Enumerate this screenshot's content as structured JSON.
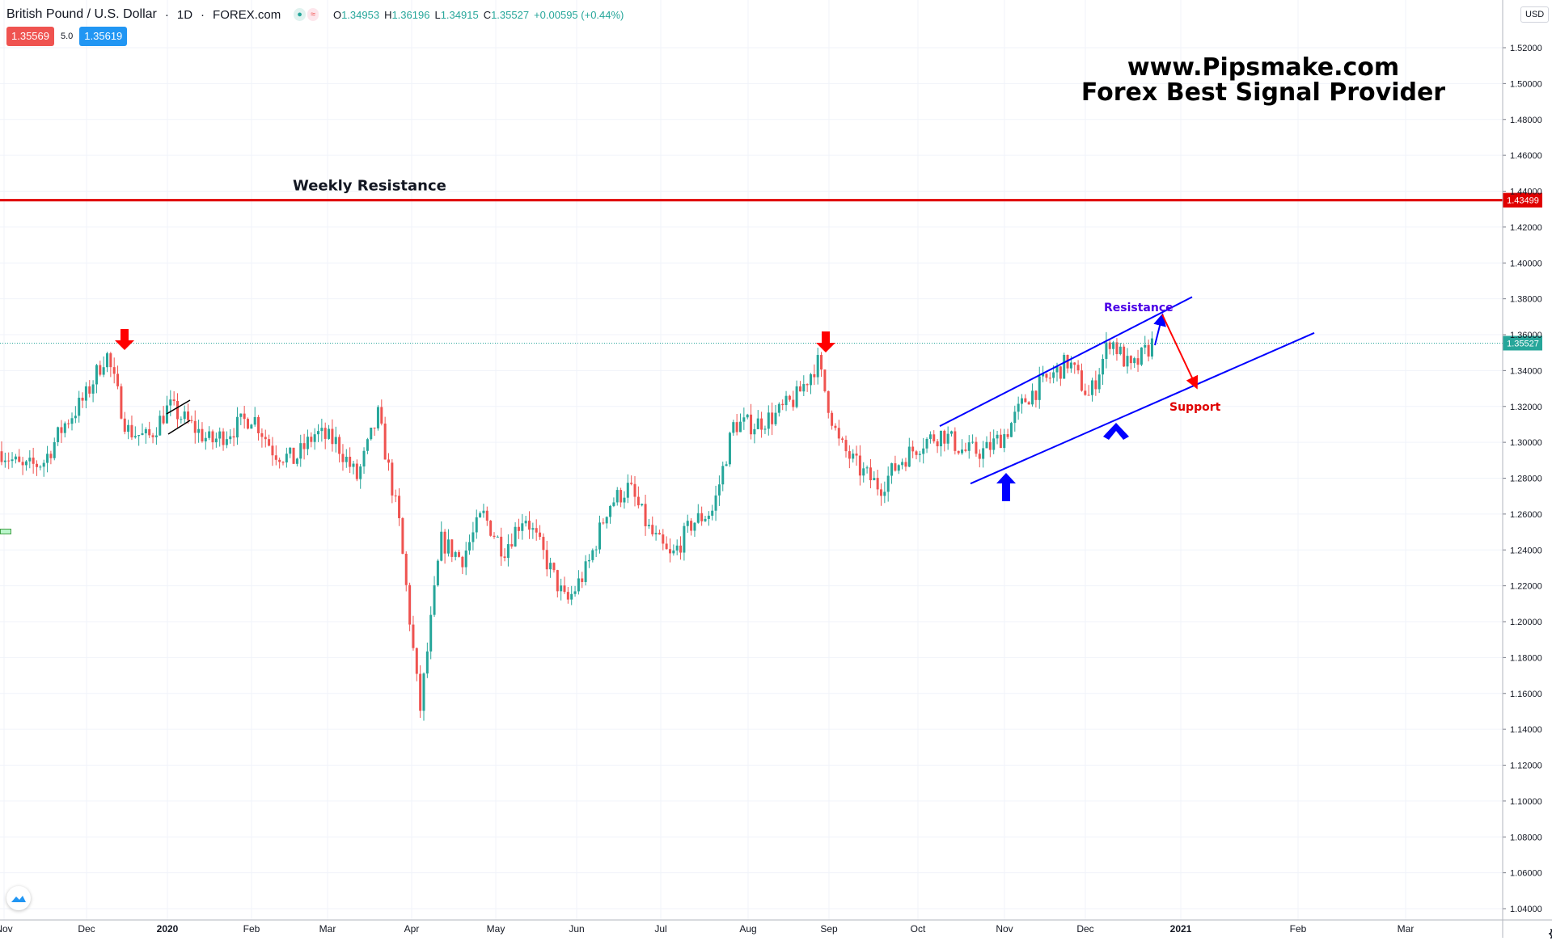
{
  "header": {
    "pair": "British Pound / U.S. Dollar",
    "interval": "1D",
    "exchange": "FOREX.com",
    "icons": [
      "market-open-dot-icon",
      "approximately-icon"
    ],
    "ohlc": {
      "open_label": "O",
      "open": "1.34953",
      "high_label": "H",
      "high": "1.36196",
      "low_label": "L",
      "low": "1.34915",
      "close_label": "C",
      "close": "1.35527",
      "change": "+0.00595 (+0.44%)"
    }
  },
  "trade": {
    "sell": "1.35569",
    "spread": "5.0",
    "buy": "1.35619"
  },
  "currency": "USD",
  "watermark": {
    "line1": "www.Pipsmake.com",
    "line2": "Forex Best Signal Provider"
  },
  "annotations": {
    "weekly_resistance": "Weekly Resistance",
    "resistance": "Resistance",
    "support": "Support"
  },
  "colors": {
    "up": "#26a69a",
    "down": "#ef5350",
    "grid": "#f0f3fa",
    "resistance_line": "#e00000",
    "channel": "#0000ff",
    "last_price": "#26a69a"
  },
  "chart_data": {
    "type": "candlestick",
    "title": "British Pound / U.S. Dollar",
    "y_axis": {
      "ticks": [
        "1.52000",
        "1.50000",
        "1.48000",
        "1.46000",
        "1.44000",
        "1.42000",
        "1.40000",
        "1.38000",
        "1.36000",
        "1.34000",
        "1.32000",
        "1.30000",
        "1.28000",
        "1.26000",
        "1.24000",
        "1.22000",
        "1.20000",
        "1.18000",
        "1.16000",
        "1.14000",
        "1.12000",
        "1.10000",
        "1.08000",
        "1.06000",
        "1.04000"
      ],
      "range": [
        1.033,
        1.527
      ]
    },
    "x_axis": {
      "ticks": [
        "Nov",
        "Dec",
        "2020",
        "Feb",
        "Mar",
        "Apr",
        "May",
        "Jun",
        "Jul",
        "Aug",
        "Sep",
        "Oct",
        "Nov",
        "Dec",
        "2021",
        "Feb",
        "Mar"
      ]
    },
    "price_labels": {
      "weekly_resistance": "1.43499",
      "last_price": "1.35527"
    },
    "trend": [
      [
        "Nov",
        1.295
      ],
      [
        "Nov",
        1.285
      ],
      [
        "Nov",
        1.289
      ],
      [
        "Dec",
        1.31
      ],
      [
        "Dec",
        1.325
      ],
      [
        "Dec",
        1.35
      ],
      [
        "Dec",
        1.307
      ],
      [
        "Dec",
        1.302
      ],
      [
        "2020",
        1.32
      ],
      [
        "2020",
        1.31
      ],
      [
        "2020",
        1.3
      ],
      [
        "2020",
        1.307
      ],
      [
        "Feb",
        1.315
      ],
      [
        "Feb",
        1.295
      ],
      [
        "Feb",
        1.29
      ],
      [
        "Feb",
        1.305
      ],
      [
        "Mar",
        1.3
      ],
      [
        "Mar",
        1.28
      ],
      [
        "Mar",
        1.315
      ],
      [
        "Mar",
        1.255
      ],
      [
        "Mar",
        1.15
      ],
      [
        "Apr",
        1.245
      ],
      [
        "Apr",
        1.235
      ],
      [
        "Apr",
        1.26
      ],
      [
        "May",
        1.24
      ],
      [
        "May",
        1.26
      ],
      [
        "May",
        1.235
      ],
      [
        "May",
        1.21
      ],
      [
        "Jun",
        1.23
      ],
      [
        "Jun",
        1.265
      ],
      [
        "Jun",
        1.275
      ],
      [
        "Jun",
        1.25
      ],
      [
        "Jul",
        1.235
      ],
      [
        "Jul",
        1.255
      ],
      [
        "Jul",
        1.262
      ],
      [
        "Aug",
        1.31
      ],
      [
        "Aug",
        1.31
      ],
      [
        "Aug",
        1.315
      ],
      [
        "Aug",
        1.325
      ],
      [
        "Sep",
        1.345
      ],
      [
        "Sep",
        1.3
      ],
      [
        "Sep",
        1.285
      ],
      [
        "Sep",
        1.275
      ],
      [
        "Oct",
        1.29
      ],
      [
        "Oct",
        1.3
      ],
      [
        "Oct",
        1.305
      ],
      [
        "Oct",
        1.295
      ],
      [
        "Nov",
        1.295
      ],
      [
        "Nov",
        1.305
      ],
      [
        "Nov",
        1.325
      ],
      [
        "Dec",
        1.335
      ],
      [
        "Dec",
        1.345
      ],
      [
        "Dec",
        1.325
      ],
      [
        "Dec",
        1.358
      ],
      [
        "Dec",
        1.34
      ],
      [
        "Dec",
        1.355
      ]
    ],
    "weekly_resistance": 1.43499,
    "channel": {
      "upper": [
        [
          "Oct",
          1.309
        ],
        [
          "2021",
          1.381
        ]
      ],
      "lower": [
        [
          "Oct",
          1.277
        ],
        [
          "Feb",
          1.361
        ]
      ]
    },
    "forecast_path": [
      1.35,
      1.373,
      1.335
    ]
  }
}
